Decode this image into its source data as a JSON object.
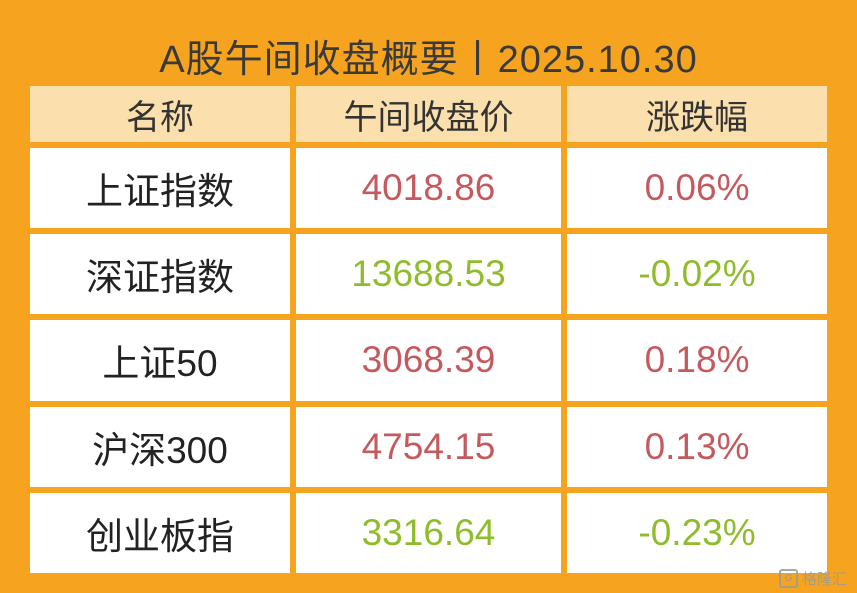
{
  "title": "A股午间收盘概要丨2025.10.30",
  "watermark": {
    "label": "格隆汇",
    "logo_letter": "G"
  },
  "colors": {
    "frame_orange": "#f6a41f",
    "header_bg": "#fbdfac",
    "up_red": "#c55a5e",
    "down_green": "#8fbc2b"
  },
  "chart_data": {
    "type": "table",
    "title": "A股午间收盘概要丨2025.10.30",
    "columns": [
      "名称",
      "午间收盘价",
      "涨跌幅"
    ],
    "rows": [
      {
        "name": "上证指数",
        "price": "4018.86",
        "change": "0.06%",
        "direction": "up"
      },
      {
        "name": "深证指数",
        "price": "13688.53",
        "change": "-0.02%",
        "direction": "down"
      },
      {
        "name": "上证50",
        "price": "3068.39",
        "change": "0.18%",
        "direction": "up"
      },
      {
        "name": "沪深300",
        "price": "4754.15",
        "change": "0.13%",
        "direction": "up"
      },
      {
        "name": "创业板指",
        "price": "3316.64",
        "change": "-0.23%",
        "direction": "down"
      }
    ]
  }
}
